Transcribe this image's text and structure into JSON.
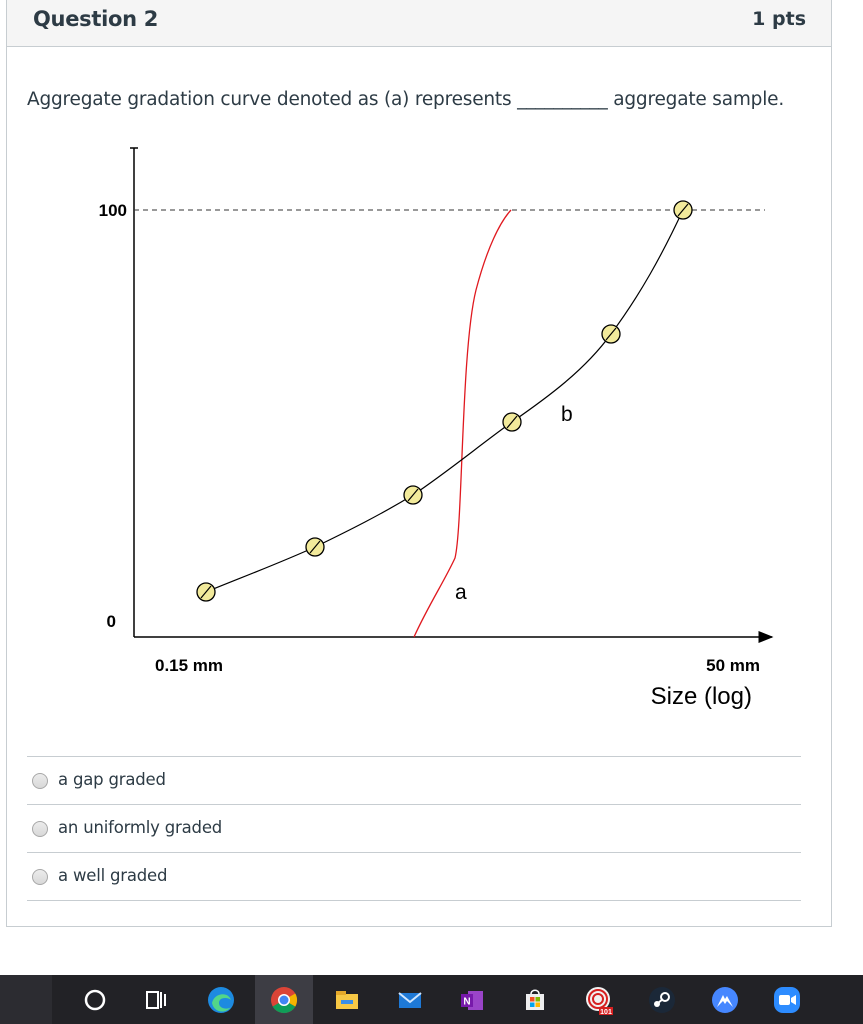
{
  "question": {
    "title": "Question 2",
    "points": "1 pts",
    "text": "Aggregate gradation curve denoted as (a) represents __________ aggregate sample."
  },
  "chart_data": {
    "type": "line",
    "ylim": [
      0,
      110
    ],
    "y_tick_labels": [
      "100",
      "0"
    ],
    "x_tick_labels": [
      "0.15 mm",
      "50 mm"
    ],
    "xlabel": "Size (log)",
    "reference_line": {
      "y": 100,
      "style": "dashed"
    },
    "series": [
      {
        "name": "b",
        "markers": true,
        "x": [
          0.15,
          0.5,
          1.6,
          4.5,
          16,
          50
        ],
        "y": [
          6,
          18,
          30,
          48,
          67,
          100
        ]
      },
      {
        "name": "a",
        "markers": false,
        "x": [
          1.6,
          2.6,
          3.2,
          4.5
        ],
        "y": [
          0,
          18,
          72,
          100
        ]
      }
    ],
    "colors": {
      "b": "#000000",
      "a": "#e0191f",
      "marker_fill": "#f2ea9b"
    }
  },
  "answers": [
    {
      "label": "a gap graded"
    },
    {
      "label": "an uniformly graded"
    },
    {
      "label": "a well graded"
    }
  ],
  "taskbar": {
    "icons": [
      "search-circle-icon",
      "task-view-icon",
      "edge-icon",
      "chrome-icon",
      "file-explorer-icon",
      "mail-icon",
      "onenote-icon",
      "store-icon",
      "cinema-app-icon",
      "steam-icon",
      "nordvpn-icon",
      "zoom-icon"
    ]
  }
}
